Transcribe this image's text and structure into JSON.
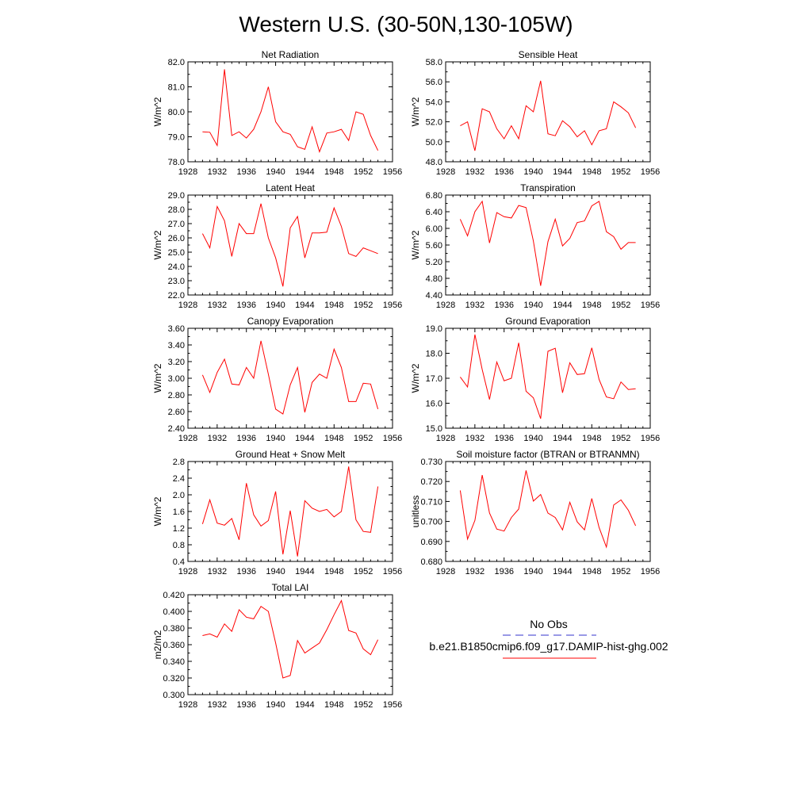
{
  "title": "Western U.S. (30-50N,130-105W)",
  "colors": {
    "model_line": "#ff0000",
    "obs_line": "#3333cc",
    "axis": "#000000"
  },
  "legend": {
    "obs_label": "No Obs",
    "model_label": "b.e21.B1850cmip6.f09_g17.DAMIP-hist-ghg.002"
  },
  "chart_data": [
    {
      "type": "line",
      "title": "Net Radiation",
      "ylabel": "W/m^2",
      "xlim": [
        1928,
        1956
      ],
      "x_ticks": [
        1928,
        1932,
        1936,
        1940,
        1944,
        1948,
        1952,
        1956
      ],
      "ylim": [
        78.0,
        82.0
      ],
      "y_ticks": [
        "78.0",
        "79.0",
        "80.0",
        "81.0",
        "82.0"
      ],
      "x": [
        1930,
        1931,
        1932,
        1933,
        1934,
        1935,
        1936,
        1937,
        1938,
        1939,
        1940,
        1941,
        1942,
        1943,
        1944,
        1945,
        1946,
        1947,
        1948,
        1949,
        1950,
        1951,
        1952,
        1953,
        1954
      ],
      "y": [
        79.2,
        79.18,
        78.65,
        81.7,
        79.05,
        79.2,
        78.95,
        79.3,
        80.0,
        81.0,
        79.6,
        79.2,
        79.1,
        78.6,
        78.5,
        79.4,
        78.4,
        79.15,
        79.2,
        79.3,
        78.85,
        80.0,
        79.9,
        79.05,
        78.45
      ]
    },
    {
      "type": "line",
      "title": "Sensible Heat",
      "ylabel": "W/m^2",
      "xlim": [
        1928,
        1956
      ],
      "x_ticks": [
        1928,
        1932,
        1936,
        1940,
        1944,
        1948,
        1952,
        1956
      ],
      "ylim": [
        48.0,
        58.0
      ],
      "y_ticks": [
        "48.0",
        "50.0",
        "52.0",
        "54.0",
        "56.0",
        "58.0"
      ],
      "x": [
        1930,
        1931,
        1932,
        1933,
        1934,
        1935,
        1936,
        1937,
        1938,
        1939,
        1940,
        1941,
        1942,
        1943,
        1944,
        1945,
        1946,
        1947,
        1948,
        1949,
        1950,
        1951,
        1952,
        1953,
        1954
      ],
      "y": [
        51.6,
        52.0,
        49.1,
        53.3,
        53.0,
        51.3,
        50.3,
        51.6,
        50.3,
        53.6,
        53.0,
        56.1,
        50.8,
        50.6,
        52.1,
        51.5,
        50.5,
        51.1,
        49.7,
        51.1,
        51.3,
        54.0,
        53.5,
        52.9,
        51.4
      ]
    },
    {
      "type": "line",
      "title": "Latent Heat",
      "ylabel": "W/m^2",
      "xlim": [
        1928,
        1956
      ],
      "x_ticks": [
        1928,
        1932,
        1936,
        1940,
        1944,
        1948,
        1952,
        1956
      ],
      "ylim": [
        22.0,
        29.0
      ],
      "y_ticks": [
        "22.0",
        "23.0",
        "24.0",
        "25.0",
        "26.0",
        "27.0",
        "28.0",
        "29.0"
      ],
      "x": [
        1930,
        1931,
        1932,
        1933,
        1934,
        1935,
        1936,
        1937,
        1938,
        1939,
        1940,
        1941,
        1942,
        1943,
        1944,
        1945,
        1946,
        1947,
        1948,
        1949,
        1950,
        1951,
        1952,
        1953,
        1954
      ],
      "y": [
        26.3,
        25.3,
        28.2,
        27.2,
        24.7,
        27.0,
        26.3,
        26.3,
        28.4,
        26.0,
        24.6,
        22.6,
        26.7,
        27.5,
        24.6,
        26.35,
        26.35,
        26.4,
        28.1,
        26.8,
        24.9,
        24.7,
        25.3,
        25.1,
        24.9
      ]
    },
    {
      "type": "line",
      "title": "Transpiration",
      "ylabel": "W/m^2",
      "xlim": [
        1928,
        1956
      ],
      "x_ticks": [
        1928,
        1932,
        1936,
        1940,
        1944,
        1948,
        1952,
        1956
      ],
      "ylim": [
        4.4,
        6.8
      ],
      "y_ticks": [
        "4.40",
        "4.80",
        "5.20",
        "5.60",
        "6.00",
        "6.40",
        "6.80"
      ],
      "x": [
        1930,
        1931,
        1932,
        1933,
        1934,
        1935,
        1936,
        1937,
        1938,
        1939,
        1940,
        1941,
        1942,
        1943,
        1944,
        1945,
        1946,
        1947,
        1948,
        1949,
        1950,
        1951,
        1952,
        1953,
        1954
      ],
      "y": [
        6.22,
        5.82,
        6.4,
        6.65,
        5.65,
        6.38,
        6.28,
        6.25,
        6.55,
        6.5,
        5.7,
        4.62,
        5.68,
        6.22,
        5.58,
        5.76,
        6.14,
        6.18,
        6.54,
        6.65,
        5.92,
        5.8,
        5.5,
        5.66,
        5.66
      ]
    },
    {
      "type": "line",
      "title": "Canopy Evaporation",
      "ylabel": "W/m^2",
      "xlim": [
        1928,
        1956
      ],
      "x_ticks": [
        1928,
        1932,
        1936,
        1940,
        1944,
        1948,
        1952,
        1956
      ],
      "ylim": [
        2.4,
        3.6
      ],
      "y_ticks": [
        "2.40",
        "2.60",
        "2.80",
        "3.00",
        "3.20",
        "3.40",
        "3.60"
      ],
      "x": [
        1930,
        1931,
        1932,
        1933,
        1934,
        1935,
        1936,
        1937,
        1938,
        1939,
        1940,
        1941,
        1942,
        1943,
        1944,
        1945,
        1946,
        1947,
        1948,
        1949,
        1950,
        1951,
        1952,
        1953,
        1954
      ],
      "y": [
        3.04,
        2.83,
        3.07,
        3.23,
        2.93,
        2.92,
        3.13,
        3.0,
        3.45,
        3.05,
        2.63,
        2.57,
        2.92,
        3.13,
        2.59,
        2.95,
        3.05,
        3.0,
        3.35,
        3.13,
        2.72,
        2.72,
        2.94,
        2.93,
        2.63
      ]
    },
    {
      "type": "line",
      "title": "Ground Evaporation",
      "ylabel": "W/m^2",
      "xlim": [
        1928,
        1956
      ],
      "x_ticks": [
        1928,
        1932,
        1936,
        1940,
        1944,
        1948,
        1952,
        1956
      ],
      "ylim": [
        15.0,
        19.0
      ],
      "y_ticks": [
        "15.0",
        "16.0",
        "17.0",
        "18.0",
        "19.0"
      ],
      "x": [
        1930,
        1931,
        1932,
        1933,
        1934,
        1935,
        1936,
        1937,
        1938,
        1939,
        1940,
        1941,
        1942,
        1943,
        1944,
        1945,
        1946,
        1947,
        1948,
        1949,
        1950,
        1951,
        1952,
        1953,
        1954
      ],
      "y": [
        17.05,
        16.65,
        18.75,
        17.35,
        16.15,
        17.65,
        16.9,
        17.0,
        18.42,
        16.48,
        16.22,
        15.38,
        18.08,
        18.2,
        16.42,
        17.62,
        17.15,
        17.18,
        18.22,
        16.95,
        16.25,
        16.18,
        16.85,
        16.55,
        16.58
      ]
    },
    {
      "type": "line",
      "title": "Ground Heat + Snow Melt",
      "ylabel": "W/m^2",
      "xlim": [
        1928,
        1956
      ],
      "x_ticks": [
        1928,
        1932,
        1936,
        1940,
        1944,
        1948,
        1952,
        1956
      ],
      "ylim": [
        0.4,
        2.8
      ],
      "y_ticks": [
        "0.4",
        "0.8",
        "1.2",
        "1.6",
        "2.0",
        "2.4",
        "2.8"
      ],
      "x": [
        1930,
        1931,
        1932,
        1933,
        1934,
        1935,
        1936,
        1937,
        1938,
        1939,
        1940,
        1941,
        1942,
        1943,
        1944,
        1945,
        1946,
        1947,
        1948,
        1949,
        1950,
        1951,
        1952,
        1953,
        1954
      ],
      "y": [
        1.3,
        1.88,
        1.32,
        1.27,
        1.43,
        0.92,
        2.28,
        1.52,
        1.25,
        1.38,
        2.08,
        0.57,
        1.62,
        0.52,
        1.86,
        1.68,
        1.6,
        1.65,
        1.47,
        1.6,
        2.68,
        1.4,
        1.12,
        1.1,
        2.2
      ]
    },
    {
      "type": "line",
      "title": "Soil moisture factor (BTRAN or BTRANMN)",
      "ylabel": "unitless",
      "xlim": [
        1928,
        1956
      ],
      "x_ticks": [
        1928,
        1932,
        1936,
        1940,
        1944,
        1948,
        1952,
        1956
      ],
      "ylim": [
        0.68,
        0.73
      ],
      "y_ticks": [
        "0.680",
        "0.690",
        "0.700",
        "0.710",
        "0.720",
        "0.730"
      ],
      "x": [
        1930,
        1931,
        1932,
        1933,
        1934,
        1935,
        1936,
        1937,
        1938,
        1939,
        1940,
        1941,
        1942,
        1943,
        1944,
        1945,
        1946,
        1947,
        1948,
        1949,
        1950,
        1951,
        1952,
        1953,
        1954
      ],
      "y": [
        0.7155,
        0.6912,
        0.7005,
        0.7232,
        0.7042,
        0.6962,
        0.6952,
        0.702,
        0.7062,
        0.7255,
        0.7102,
        0.7135,
        0.7042,
        0.702,
        0.6958,
        0.7096,
        0.6998,
        0.6958,
        0.7115,
        0.697,
        0.6872,
        0.7082,
        0.7108,
        0.7056,
        0.6978
      ]
    },
    {
      "type": "line",
      "title": "Total LAI",
      "ylabel": "m2/m2",
      "xlim": [
        1928,
        1956
      ],
      "x_ticks": [
        1928,
        1932,
        1936,
        1940,
        1944,
        1948,
        1952,
        1956
      ],
      "ylim": [
        0.3,
        0.42
      ],
      "y_ticks": [
        "0.300",
        "0.320",
        "0.340",
        "0.360",
        "0.380",
        "0.400",
        "0.420"
      ],
      "x": [
        1930,
        1931,
        1932,
        1933,
        1934,
        1935,
        1936,
        1937,
        1938,
        1939,
        1940,
        1941,
        1942,
        1943,
        1944,
        1945,
        1946,
        1947,
        1948,
        1949,
        1950,
        1951,
        1952,
        1953,
        1954
      ],
      "y": [
        0.371,
        0.373,
        0.369,
        0.385,
        0.376,
        0.402,
        0.393,
        0.391,
        0.406,
        0.4,
        0.362,
        0.32,
        0.323,
        0.365,
        0.35,
        0.356,
        0.362,
        0.378,
        0.396,
        0.413,
        0.377,
        0.374,
        0.355,
        0.348,
        0.366
      ]
    }
  ]
}
